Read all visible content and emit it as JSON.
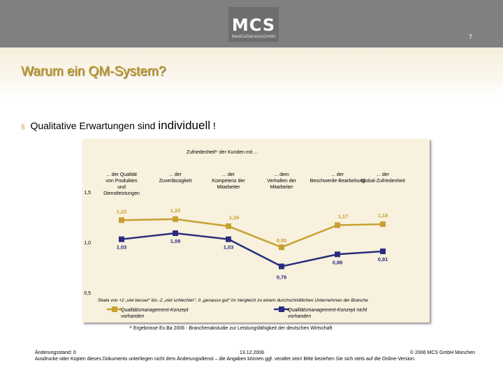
{
  "header": {
    "logo_text": "MCS",
    "logo_sub": "MediCalServicesGmbH",
    "page_number": "7"
  },
  "title": "Warum ein QM-System?",
  "bullet": {
    "prefix": "Qualitative Erwartungen sind",
    "highlight": "individuell",
    "suffix": "!"
  },
  "colors": {
    "accent": "#c8a030",
    "gold_series": "#c8a030",
    "navy_series": "#2a2d7e",
    "chart_bg": "#f7f1de",
    "topbar": "#808080"
  },
  "chart_data": {
    "type": "line",
    "title": "Zufriedenheit¹⁾ der Kunden mit ...",
    "categories": [
      "... der Qualität von Produkten und Dienstleistungen",
      "... der Zuverlässigkeit",
      "... der Kompetenz der Mitarbeiter",
      "... dem Verhalten der Mitarbeiter",
      "... der Beschwerde-Bearbeitung",
      "... der Global-Zufriedenheit"
    ],
    "series": [
      {
        "name": "Qualitätsmanagement-Konzept vorhanden",
        "color": "#c8a030",
        "values": [
          1.22,
          1.23,
          1.16,
          0.95,
          1.17,
          1.18
        ],
        "labels": [
          "1,22",
          "1,23",
          "1,16",
          "0,95",
          "1,17",
          "1,18"
        ]
      },
      {
        "name": "Qualitätsmanagement-Konzept nicht vorhanden",
        "color": "#2a2d7e",
        "values": [
          1.03,
          1.09,
          1.03,
          0.76,
          0.88,
          0.91
        ],
        "labels": [
          "1,03",
          "1,09",
          "1,03",
          "0,76",
          "0,88",
          "0,91"
        ]
      }
    ],
    "yticks": [
      1.5,
      1.0,
      0.5
    ],
    "ytick_labels": [
      "1,5",
      "1,0",
      "0,5"
    ],
    "ylim": [
      0.5,
      1.5
    ],
    "grid": false,
    "legend": "bottom",
    "scale_note": "Skala von +2 „viel besser“ bis -2 „viel schlechter“, 0 „genauso gut“ im Vergleich zu einem durchschnittlichen Unternehmen der Branche"
  },
  "footnote": "¹⁾ Ergebnisse Ex.Ba 2006 - Branchenakstudie zur Leistungsfähigkeit der deutschen Wirtschaft",
  "footer": {
    "revision": "Änderungsstand: 0",
    "date": "13.12.2006",
    "copyright": "© 2006 MCS GmbH München",
    "disclaimer": "Ausdrucke oder Kopien dieses Dokuments unterliegen nicht dem Änderungsdienst – die Angaben können ggf. veraltet sein! Bitte beziehen Sie sich stets auf die Online-Version."
  }
}
